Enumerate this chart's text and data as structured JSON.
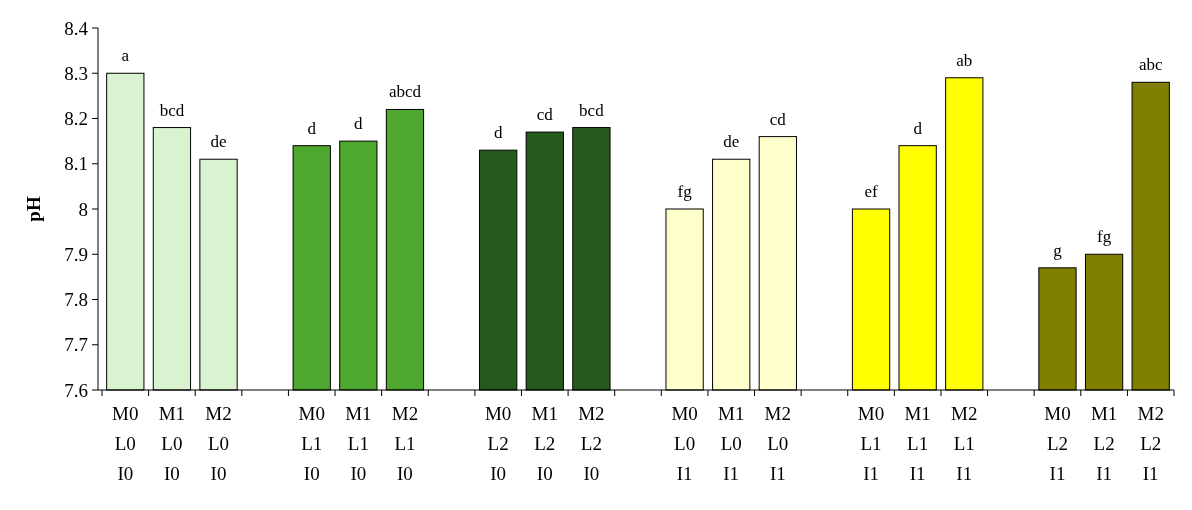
{
  "chart_data": {
    "type": "bar",
    "ylabel": "pH",
    "categories": [
      "M0\nL0\nI0",
      "M1\nL0\nI0",
      "M2\nL0\nI0",
      null,
      "M0\nL1\nI0",
      "M1\nL1\nI0",
      "M2\nL1\nI0",
      null,
      "M0\nL2\nI0",
      "M1\nL2\nI0",
      "M2\nL2\nI0",
      null,
      "M0\nL0\nI1",
      "M1\nL0\nI1",
      "M2\nL0\nI1",
      null,
      "M0\nL1\nI1",
      "M1\nL1\nI1",
      "M2\nL1\nI1",
      null,
      "M0\nL2\nI1",
      "M1\nL2\nI1",
      "M2\nL2\nI1"
    ],
    "values": [
      8.3,
      8.18,
      8.11,
      null,
      8.14,
      8.15,
      8.22,
      null,
      8.13,
      8.17,
      8.18,
      null,
      8.0,
      8.11,
      8.16,
      null,
      8.0,
      8.14,
      8.29,
      null,
      7.87,
      7.9,
      8.28
    ],
    "colors": [
      "#d9f2d0",
      "#d9f2d0",
      "#d9f2d0",
      null,
      "#4ea72e",
      "#4ea72e",
      "#4ea72e",
      null,
      "#265a1c",
      "#265a1c",
      "#265a1c",
      null,
      "#ffffcc",
      "#ffffcc",
      "#ffffcc",
      null,
      "#ffff00",
      "#ffff00",
      "#ffff00",
      null,
      "#808000",
      "#808000",
      "#808000"
    ],
    "value_labels": [
      "a",
      "bcd",
      "de",
      null,
      "d",
      "d",
      "abcd",
      null,
      "d",
      "cd",
      "bcd",
      null,
      "fg",
      "de",
      "cd",
      null,
      "ef",
      "d",
      "ab",
      null,
      "g",
      "fg",
      "abc"
    ],
    "ylim": [
      7.6,
      8.4
    ],
    "yticks": [
      7.6,
      7.7,
      7.8,
      7.9,
      8,
      8.1,
      8.2,
      8.3,
      8.4
    ],
    "grid": false
  }
}
